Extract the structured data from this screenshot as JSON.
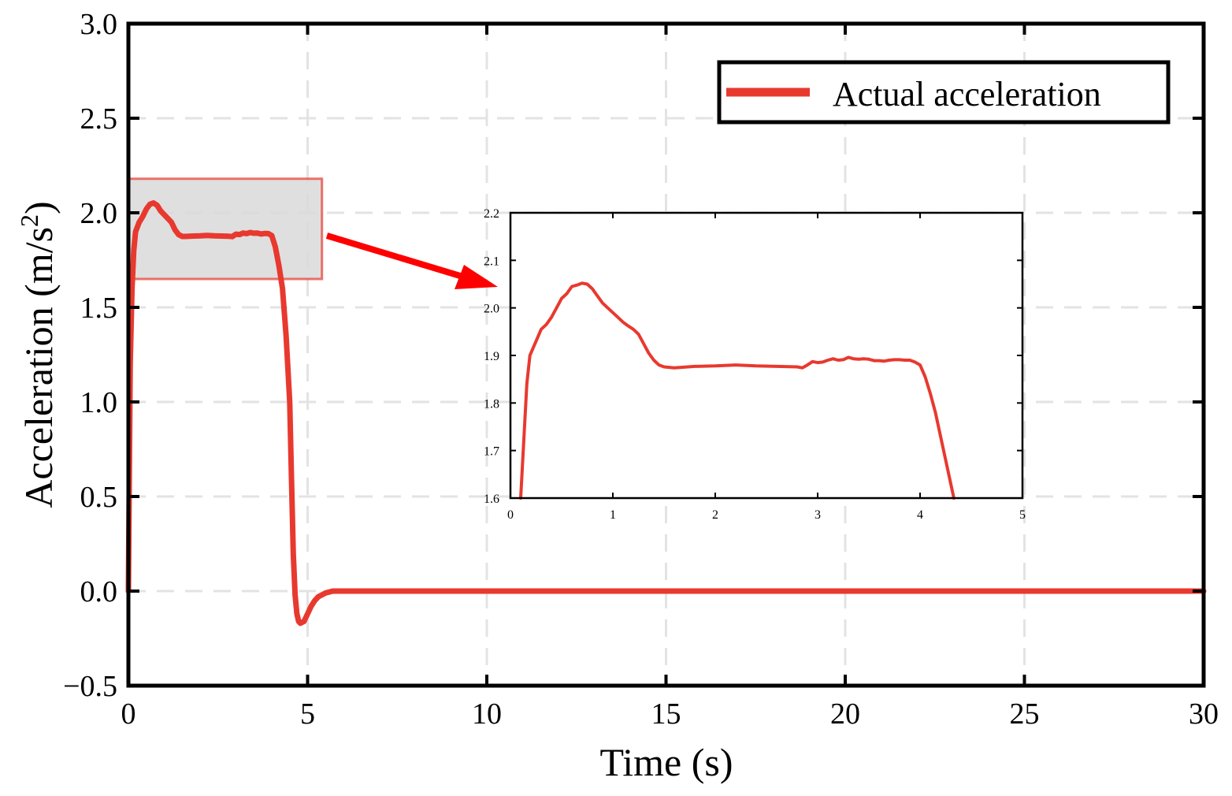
{
  "colors": {
    "series": "#e8392f",
    "highlight_fill": "#d9d9d9",
    "highlight_edge": "#e8392f",
    "arrow": "#ff0000",
    "grid": "#e3e3e3"
  },
  "chart_data": [
    {
      "id": "main",
      "type": "line",
      "title": "",
      "xlabel": "Time (s)",
      "ylabel_text": "Acceleration (m/s",
      "ylabel_sup": "2",
      "ylabel_close": ")",
      "xlim": [
        0,
        30
      ],
      "ylim": [
        -0.5,
        3.0
      ],
      "x_ticks": [
        0,
        5,
        10,
        15,
        20,
        25,
        30
      ],
      "x_tick_labels": [
        "0",
        "5",
        "10",
        "15",
        "20",
        "25",
        "30"
      ],
      "y_ticks": [
        -0.5,
        0.0,
        0.5,
        1.0,
        1.5,
        2.0,
        2.5,
        3.0
      ],
      "y_tick_labels": [
        "−0.5",
        "0.0",
        "0.5",
        "1.0",
        "1.5",
        "2.0",
        "2.5",
        "3.0"
      ],
      "grid": true,
      "legend": {
        "position": "top-right",
        "entries": [
          "Actual acceleration"
        ]
      },
      "highlight_region": {
        "x": [
          0,
          5.4
        ],
        "y": [
          1.65,
          2.18
        ]
      },
      "series": [
        {
          "name": "Actual acceleration",
          "x": [
            0.0,
            0.05,
            0.1,
            0.15,
            0.2,
            0.3,
            0.4,
            0.5,
            0.6,
            0.7,
            0.8,
            0.9,
            1.0,
            1.1,
            1.2,
            1.3,
            1.4,
            1.5,
            1.6,
            1.8,
            2.0,
            2.2,
            2.4,
            2.6,
            2.8,
            2.9,
            3.0,
            3.1,
            3.2,
            3.3,
            3.4,
            3.5,
            3.6,
            3.7,
            3.8,
            3.9,
            4.0,
            4.1,
            4.2,
            4.3,
            4.4,
            4.5,
            4.55,
            4.6,
            4.65,
            4.7,
            4.75,
            4.8,
            4.9,
            5.0,
            5.1,
            5.2,
            5.3,
            5.5,
            5.7,
            5.9,
            6.5,
            8.0,
            10.0,
            15.0,
            20.0,
            25.0,
            30.0
          ],
          "y": [
            0.0,
            1.2,
            1.6,
            1.8,
            1.9,
            1.95,
            1.98,
            2.02,
            2.045,
            2.052,
            2.04,
            2.01,
            1.99,
            1.97,
            1.95,
            1.91,
            1.885,
            1.875,
            1.875,
            1.877,
            1.878,
            1.88,
            1.878,
            1.877,
            1.876,
            1.874,
            1.887,
            1.885,
            1.893,
            1.89,
            1.896,
            1.892,
            1.893,
            1.888,
            1.891,
            1.89,
            1.88,
            1.82,
            1.72,
            1.6,
            1.35,
            1.0,
            0.6,
            0.2,
            -0.02,
            -0.12,
            -0.16,
            -0.17,
            -0.16,
            -0.12,
            -0.08,
            -0.05,
            -0.03,
            -0.01,
            0.0,
            0.0,
            0.0,
            0.0,
            0.0,
            0.0,
            0.0,
            0.0,
            0.0
          ]
        }
      ]
    },
    {
      "id": "inset",
      "type": "line",
      "title": "",
      "xlabel": "",
      "ylabel": "",
      "xlim": [
        0,
        5
      ],
      "ylim": [
        1.6,
        2.2
      ],
      "x_ticks": [
        0,
        1,
        2,
        3,
        4,
        5
      ],
      "x_tick_labels": [
        "0",
        "1",
        "2",
        "3",
        "4",
        "5"
      ],
      "y_ticks": [
        1.6,
        1.7,
        1.8,
        1.9,
        2.0,
        2.1,
        2.2
      ],
      "y_tick_labels": [
        "1.6",
        "1.7",
        "1.8",
        "1.9",
        "2.0",
        "2.1",
        "2.2"
      ],
      "grid": false,
      "series": [
        {
          "name": "Actual acceleration",
          "x": [
            0.1,
            0.13,
            0.16,
            0.19,
            0.25,
            0.3,
            0.35,
            0.4,
            0.45,
            0.5,
            0.55,
            0.6,
            0.65,
            0.7,
            0.75,
            0.8,
            0.85,
            0.9,
            0.95,
            1.0,
            1.05,
            1.1,
            1.15,
            1.2,
            1.25,
            1.3,
            1.35,
            1.4,
            1.45,
            1.5,
            1.6,
            1.8,
            2.0,
            2.2,
            2.4,
            2.6,
            2.8,
            2.85,
            2.9,
            2.95,
            3.0,
            3.05,
            3.1,
            3.15,
            3.2,
            3.25,
            3.3,
            3.35,
            3.4,
            3.45,
            3.5,
            3.55,
            3.6,
            3.65,
            3.7,
            3.75,
            3.8,
            3.85,
            3.9,
            3.95,
            4.0,
            4.05,
            4.1,
            4.15,
            4.2,
            4.25,
            4.3,
            4.33
          ],
          "y": [
            1.6,
            1.72,
            1.84,
            1.9,
            1.93,
            1.955,
            1.965,
            1.98,
            2.0,
            2.02,
            2.03,
            2.045,
            2.048,
            2.052,
            2.05,
            2.04,
            2.025,
            2.01,
            2.0,
            1.99,
            1.98,
            1.97,
            1.962,
            1.955,
            1.945,
            1.925,
            1.905,
            1.89,
            1.88,
            1.876,
            1.874,
            1.877,
            1.878,
            1.88,
            1.878,
            1.877,
            1.876,
            1.874,
            1.88,
            1.887,
            1.885,
            1.886,
            1.89,
            1.893,
            1.89,
            1.891,
            1.896,
            1.893,
            1.892,
            1.893,
            1.892,
            1.889,
            1.889,
            1.888,
            1.89,
            1.891,
            1.891,
            1.89,
            1.89,
            1.886,
            1.88,
            1.855,
            1.82,
            1.78,
            1.73,
            1.68,
            1.63,
            1.6
          ]
        }
      ]
    }
  ]
}
